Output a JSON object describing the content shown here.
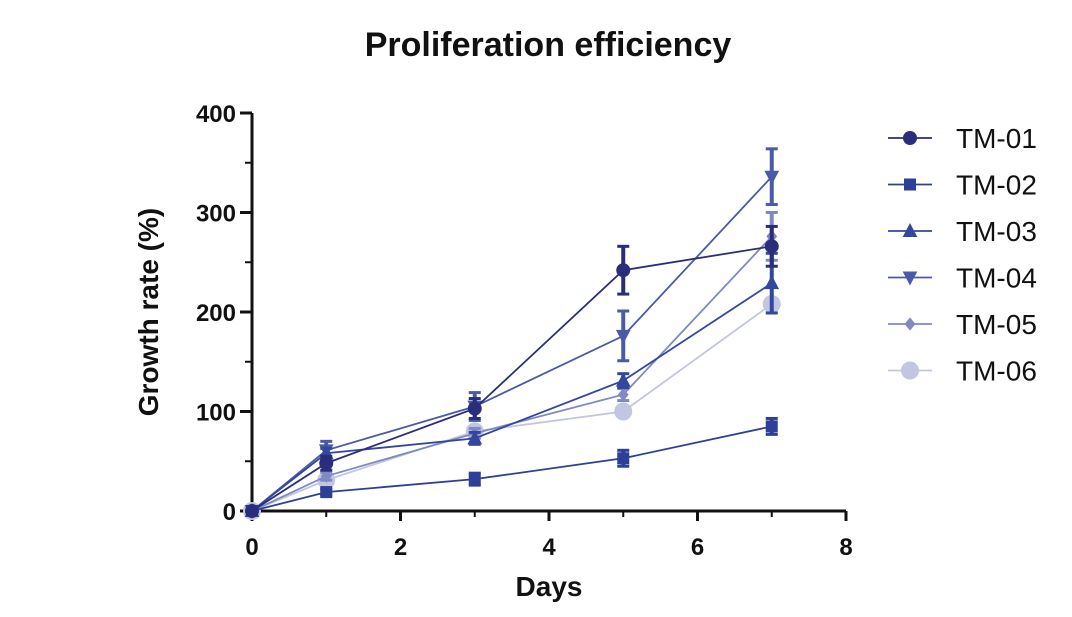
{
  "chart_data": {
    "type": "line",
    "title": "Proliferation efficiency",
    "xlabel": "Days",
    "ylabel": "Growth rate (%)",
    "xlim": [
      0,
      8
    ],
    "ylim": [
      0,
      400
    ],
    "xticks": [
      "0",
      "2",
      "4",
      "6",
      "8"
    ],
    "yticks": [
      "0",
      "100",
      "200",
      "300",
      "400"
    ],
    "legend_position": "right",
    "grid": false,
    "x": [
      0,
      1,
      3,
      5,
      7
    ],
    "series": [
      {
        "name": "TM-01",
        "marker": "circle",
        "color": "#2a2d7c",
        "values": [
          0,
          48,
          103,
          242,
          266
        ],
        "errors": [
          0,
          7,
          10,
          24,
          20
        ]
      },
      {
        "name": "TM-02",
        "marker": "square",
        "color": "#2e3f98",
        "values": [
          0,
          19,
          32,
          53,
          85
        ],
        "errors": [
          0,
          3,
          6,
          8,
          8
        ]
      },
      {
        "name": "TM-03",
        "marker": "triangle-up",
        "color": "#33479f",
        "values": [
          0,
          58,
          73,
          131,
          229
        ],
        "errors": [
          0,
          5,
          6,
          7,
          30
        ]
      },
      {
        "name": "TM-04",
        "marker": "triangle-down",
        "color": "#4a5aa8",
        "values": [
          0,
          61,
          105,
          176,
          336
        ],
        "errors": [
          0,
          9,
          14,
          25,
          28
        ]
      },
      {
        "name": "TM-05",
        "marker": "diamond",
        "color": "#7f89c2",
        "values": [
          0,
          35,
          78,
          117,
          276
        ],
        "errors": [
          0,
          4,
          5,
          6,
          24
        ]
      },
      {
        "name": "TM-06",
        "marker": "circle",
        "color": "#c2c6e3",
        "values": [
          0,
          31,
          80,
          100,
          208
        ],
        "errors": [
          0,
          3,
          5,
          5,
          6
        ]
      }
    ]
  }
}
